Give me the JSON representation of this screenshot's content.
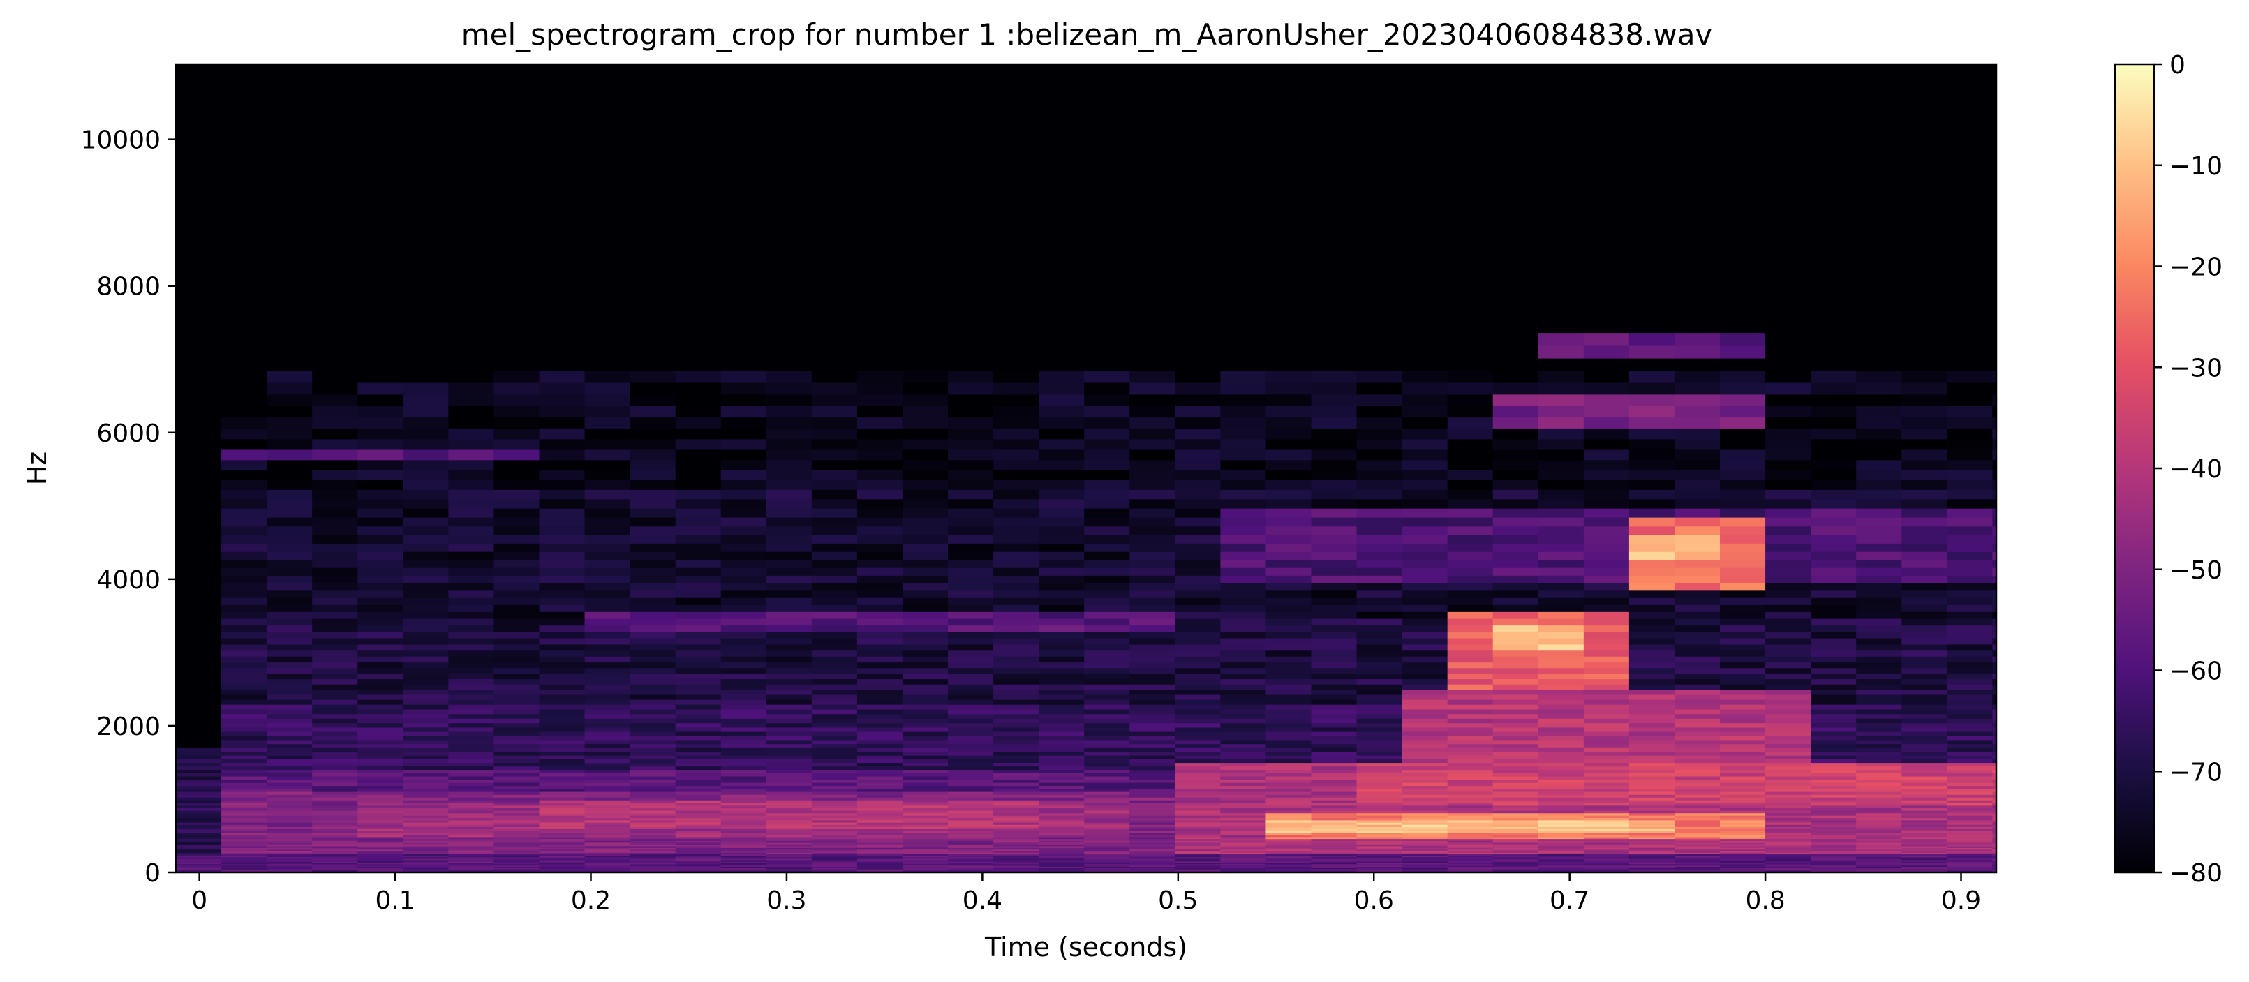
{
  "chart_data": {
    "type": "heatmap",
    "title": "mel_spectrogram_crop for number 1 :belizean_m_AaronUsher_20230406084838.wav",
    "xlabel": "Time (seconds)",
    "ylabel": "Hz",
    "xlim": [
      -0.012,
      0.918
    ],
    "ylim": [
      0,
      11025
    ],
    "x_ticks": [
      {
        "value": 0,
        "label": "0"
      },
      {
        "value": 0.1,
        "label": "0.1"
      },
      {
        "value": 0.2,
        "label": "0.2"
      },
      {
        "value": 0.3,
        "label": "0.3"
      },
      {
        "value": 0.4,
        "label": "0.4"
      },
      {
        "value": 0.5,
        "label": "0.5"
      },
      {
        "value": 0.6,
        "label": "0.6"
      },
      {
        "value": 0.7,
        "label": "0.7"
      },
      {
        "value": 0.8,
        "label": "0.8"
      },
      {
        "value": 0.9,
        "label": "0.9"
      }
    ],
    "y_ticks": [
      {
        "value": 0,
        "label": "0"
      },
      {
        "value": 2000,
        "label": "2000"
      },
      {
        "value": 4000,
        "label": "4000"
      },
      {
        "value": 6000,
        "label": "6000"
      },
      {
        "value": 8000,
        "label": "8000"
      },
      {
        "value": 10000,
        "label": "10000"
      }
    ],
    "colorbar": {
      "colormap": "magma",
      "range": [
        -80,
        0
      ],
      "ticks": [
        {
          "value": 0,
          "label": "0"
        },
        {
          "value": -10,
          "label": "−10"
        },
        {
          "value": -20,
          "label": "−20"
        },
        {
          "value": -30,
          "label": "−30"
        },
        {
          "value": -40,
          "label": "−40"
        },
        {
          "value": -50,
          "label": "−50"
        },
        {
          "value": -60,
          "label": "−60"
        },
        {
          "value": -70,
          "label": "−70"
        },
        {
          "value": -80,
          "label": "−80"
        }
      ]
    },
    "grid": false,
    "frame_step_s": 0.0232,
    "regions": [
      {
        "t": [
          -0.012,
          0.918
        ],
        "f": [
          0,
          11025
        ],
        "db": -80
      },
      {
        "t": [
          -0.012,
          0.918
        ],
        "f": [
          0,
          1700
        ],
        "db": -68
      },
      {
        "t": [
          0.015,
          0.918
        ],
        "f": [
          0,
          1400
        ],
        "db": -58
      },
      {
        "t": [
          0.015,
          0.918
        ],
        "f": [
          1400,
          2300
        ],
        "db": -66
      },
      {
        "t": [
          0.015,
          0.918
        ],
        "f": [
          2300,
          3500
        ],
        "db": -70
      },
      {
        "t": [
          0.015,
          0.918
        ],
        "f": [
          3500,
          5200
        ],
        "db": -73
      },
      {
        "t": [
          0.015,
          0.918
        ],
        "f": [
          5200,
          6800
        ],
        "db": -76
      },
      {
        "t": [
          -0.012,
          0.035
        ],
        "f": [
          0,
          250
        ],
        "db": -60
      },
      {
        "t": [
          0.035,
          0.918
        ],
        "f": [
          0,
          150
        ],
        "db": -79
      },
      {
        "t": [
          0.015,
          0.5
        ],
        "f": [
          250,
          1100
        ],
        "db": -50
      },
      {
        "t": [
          0.08,
          0.48
        ],
        "f": [
          500,
          950
        ],
        "db": -44
      },
      {
        "t": [
          0.18,
          0.42
        ],
        "f": [
          600,
          1000
        ],
        "db": -40
      },
      {
        "t": [
          0.5,
          0.918
        ],
        "f": [
          250,
          1500
        ],
        "db": -42
      },
      {
        "t": [
          0.54,
          0.8
        ],
        "f": [
          450,
          800
        ],
        "db": -22
      },
      {
        "t": [
          0.55,
          0.75
        ],
        "f": [
          550,
          720
        ],
        "db": -10
      },
      {
        "t": [
          0.6,
          0.918
        ],
        "f": [
          900,
          1500
        ],
        "db": -35
      },
      {
        "t": [
          0.62,
          0.82
        ],
        "f": [
          1500,
          2500
        ],
        "db": -40
      },
      {
        "t": [
          0.64,
          0.72
        ],
        "f": [
          2500,
          3600
        ],
        "db": -28
      },
      {
        "t": [
          0.66,
          0.71
        ],
        "f": [
          3000,
          3400
        ],
        "db": -8
      },
      {
        "t": [
          0.72,
          0.8
        ],
        "f": [
          3800,
          4800
        ],
        "db": -25
      },
      {
        "t": [
          0.74,
          0.78
        ],
        "f": [
          4300,
          4600
        ],
        "db": -8
      },
      {
        "t": [
          0.66,
          0.8
        ],
        "f": [
          6100,
          6600
        ],
        "db": -52
      },
      {
        "t": [
          0.68,
          0.8
        ],
        "f": [
          7000,
          7300
        ],
        "db": -58
      },
      {
        "t": [
          0.02,
          0.17
        ],
        "f": [
          5650,
          5800
        ],
        "db": -58
      },
      {
        "t": [
          0.2,
          0.5
        ],
        "f": [
          3300,
          3550
        ],
        "db": -58
      },
      {
        "t": [
          0.52,
          0.918
        ],
        "f": [
          4000,
          5000
        ],
        "db": -60
      },
      {
        "t": [
          0.8,
          0.918
        ],
        "f": [
          1000,
          1400
        ],
        "db": -35
      }
    ]
  }
}
